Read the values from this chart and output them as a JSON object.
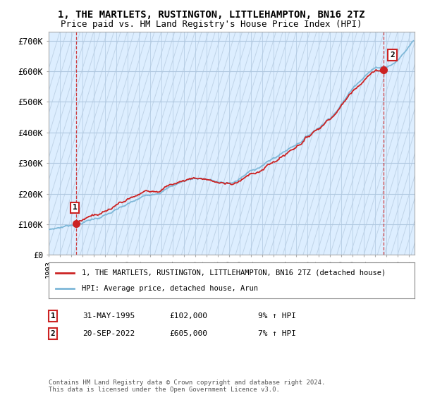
{
  "title": "1, THE MARTLETS, RUSTINGTON, LITTLEHAMPTON, BN16 2TZ",
  "subtitle": "Price paid vs. HM Land Registry's House Price Index (HPI)",
  "ylabel_ticks": [
    "£0",
    "£100K",
    "£200K",
    "£300K",
    "£400K",
    "£500K",
    "£600K",
    "£700K"
  ],
  "ytick_values": [
    0,
    100000,
    200000,
    300000,
    400000,
    500000,
    600000,
    700000
  ],
  "ylim": [
    0,
    730000
  ],
  "xlim_start": 1993,
  "xlim_end": 2025.5,
  "hpi_color": "#7fb8d8",
  "price_color": "#cc2222",
  "bg_color": "#ddeeff",
  "grid_color": "#b0c8e0",
  "hatch_color": "#c0d4e8",
  "point1": {
    "date_label": "31-MAY-1995",
    "price": 102000,
    "hpi_note": "9% ↑ HPI",
    "x": 1995.42
  },
  "point2": {
    "date_label": "20-SEP-2022",
    "price": 605000,
    "hpi_note": "7% ↑ HPI",
    "x": 2022.72
  },
  "legend_line1": "1, THE MARTLETS, RUSTINGTON, LITTLEHAMPTON, BN16 2TZ (detached house)",
  "legend_line2": "HPI: Average price, detached house, Arun",
  "footer": "Contains HM Land Registry data © Crown copyright and database right 2024.\nThis data is licensed under the Open Government Licence v3.0.",
  "annotation1_label": "1",
  "annotation2_label": "2",
  "title_fontsize": 10,
  "subtitle_fontsize": 9
}
